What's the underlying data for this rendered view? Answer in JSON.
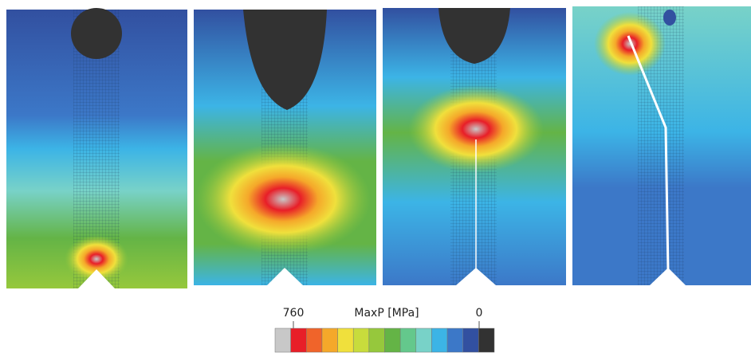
{
  "legend": {
    "max_label": "760",
    "title": "MaxP [MPa]",
    "min_label": "0",
    "colors": [
      "#c8c8c8",
      "#e81e28",
      "#f0642a",
      "#f5a82a",
      "#f0e03c",
      "#c8dc3c",
      "#96c83c",
      "#64b446",
      "#64c88c",
      "#78d2c8",
      "#3cb4e6",
      "#3c78c8",
      "#3250a0",
      "#323232"
    ]
  }
}
